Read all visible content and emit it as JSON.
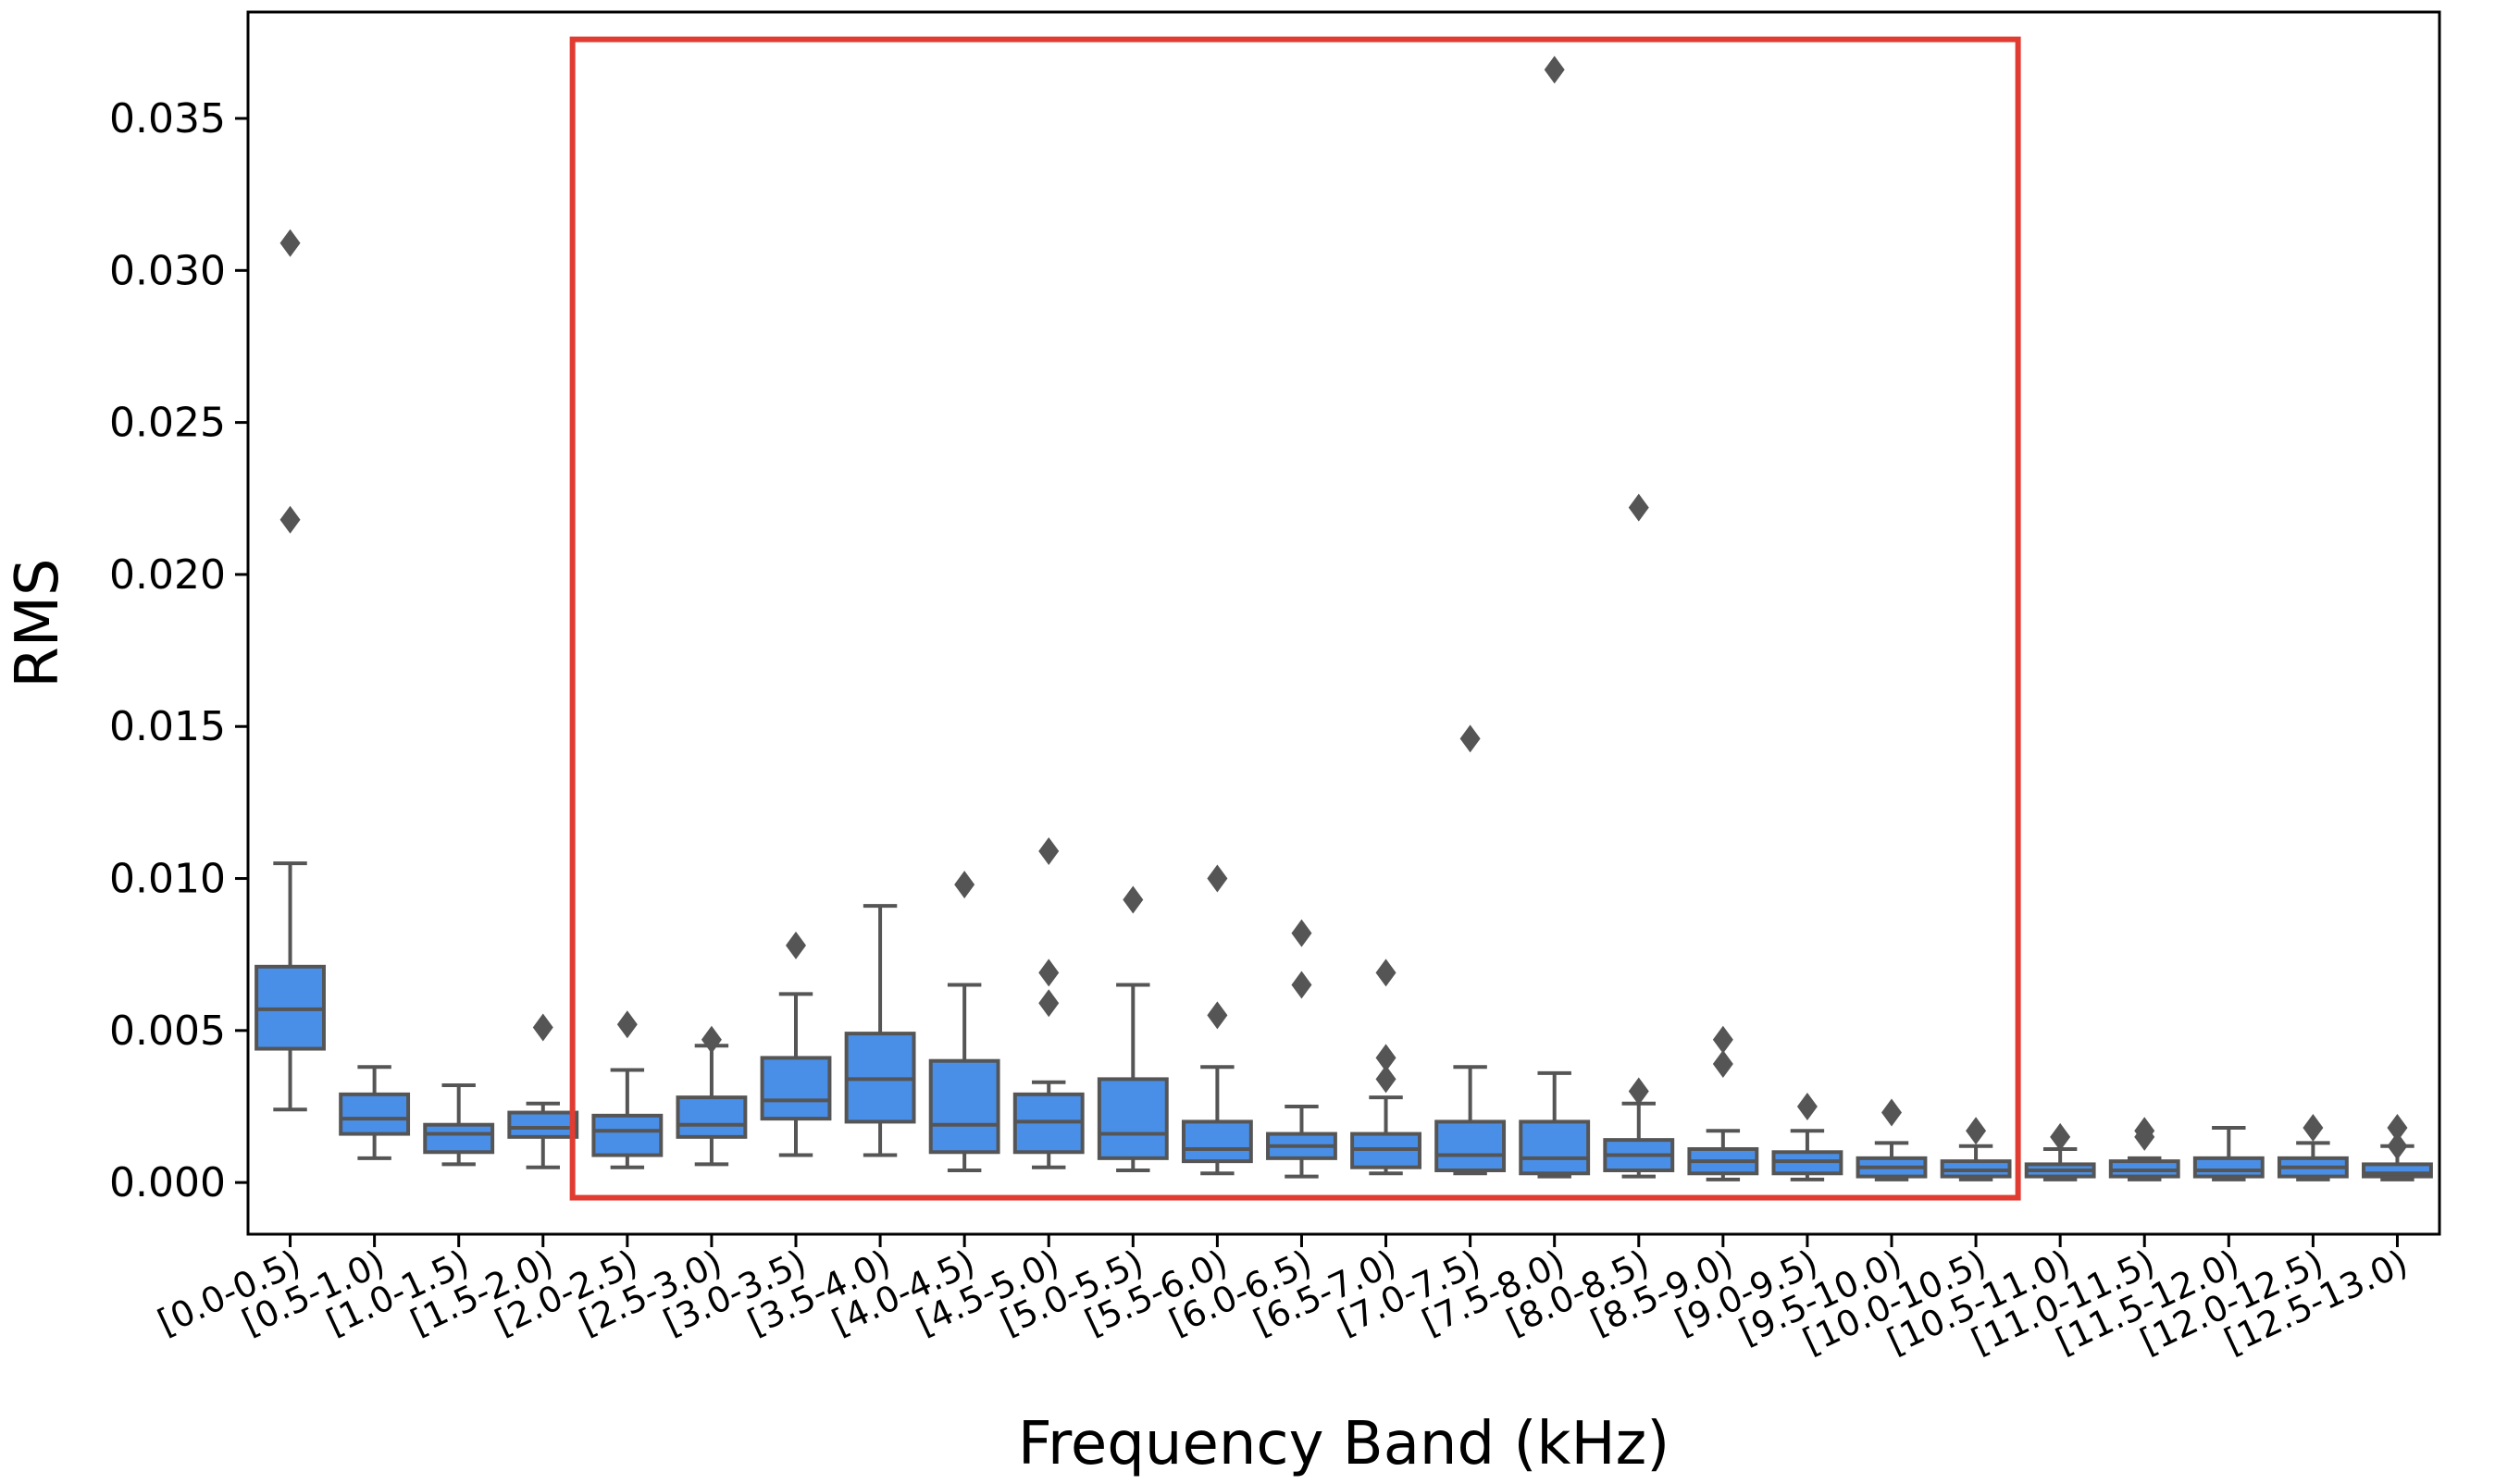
{
  "chart_data": {
    "type": "boxplot",
    "title": "",
    "xlabel": "Frequency Band (kHz)",
    "ylabel": "RMS",
    "ylim": [
      -0.0017,
      0.0385
    ],
    "yticks": [
      {
        "value": 0.0,
        "label": "0.000"
      },
      {
        "value": 0.005,
        "label": "0.005"
      },
      {
        "value": 0.01,
        "label": "0.010"
      },
      {
        "value": 0.015,
        "label": "0.015"
      },
      {
        "value": 0.02,
        "label": "0.020"
      },
      {
        "value": 0.025,
        "label": "0.025"
      },
      {
        "value": 0.03,
        "label": "0.030"
      },
      {
        "value": 0.035,
        "label": "0.035"
      }
    ],
    "grid": false,
    "box_color": "#4a8fe7",
    "edge_color": "#555555",
    "highlight": {
      "color": "#e03c31",
      "from_category": "[2.0-2.5)",
      "to_category": "[10.0-10.5)",
      "y_from": -0.0005,
      "y_to": 0.0376
    },
    "categories": [
      "[0.0-0.5)",
      "[0.5-1.0)",
      "[1.0-1.5)",
      "[1.5-2.0)",
      "[2.0-2.5)",
      "[2.5-3.0)",
      "[3.0-3.5)",
      "[3.5-4.0)",
      "[4.0-4.5)",
      "[4.5-5.0)",
      "[5.0-5.5)",
      "[5.5-6.0)",
      "[6.0-6.5)",
      "[6.5-7.0)",
      "[7.0-7.5)",
      "[7.5-8.0)",
      "[8.0-8.5)",
      "[8.5-9.0)",
      "[9.0-9.5)",
      "[9.5-10.0)",
      "[10.0-10.5)",
      "[10.5-11.0)",
      "[11.0-11.5)",
      "[11.5-12.0)",
      "[12.0-12.5)",
      "[12.5-13.0)"
    ],
    "boxes": [
      {
        "whislo": 0.0024,
        "q1": 0.0044,
        "med": 0.0057,
        "q3": 0.0071,
        "whishi": 0.0105,
        "fliers": [
          0.0309,
          0.0218
        ]
      },
      {
        "whislo": 0.0008,
        "q1": 0.0016,
        "med": 0.0021,
        "q3": 0.0029,
        "whishi": 0.0038,
        "fliers": []
      },
      {
        "whislo": 0.0006,
        "q1": 0.001,
        "med": 0.0016,
        "q3": 0.0019,
        "whishi": 0.0032,
        "fliers": []
      },
      {
        "whislo": 0.0005,
        "q1": 0.0015,
        "med": 0.0018,
        "q3": 0.0023,
        "whishi": 0.0026,
        "fliers": [
          0.0051
        ]
      },
      {
        "whislo": 0.0005,
        "q1": 0.0009,
        "med": 0.0017,
        "q3": 0.0022,
        "whishi": 0.0037,
        "fliers": [
          0.0052
        ]
      },
      {
        "whislo": 0.0006,
        "q1": 0.0015,
        "med": 0.0019,
        "q3": 0.0028,
        "whishi": 0.0045,
        "fliers": [
          0.0047
        ]
      },
      {
        "whislo": 0.0009,
        "q1": 0.0021,
        "med": 0.0027,
        "q3": 0.0041,
        "whishi": 0.0062,
        "fliers": [
          0.0078
        ]
      },
      {
        "whislo": 0.0009,
        "q1": 0.002,
        "med": 0.0034,
        "q3": 0.0049,
        "whishi": 0.0091,
        "fliers": []
      },
      {
        "whislo": 0.0004,
        "q1": 0.001,
        "med": 0.0019,
        "q3": 0.004,
        "whishi": 0.0065,
        "fliers": [
          0.0098
        ]
      },
      {
        "whislo": 0.0005,
        "q1": 0.001,
        "med": 0.002,
        "q3": 0.0029,
        "whishi": 0.0033,
        "fliers": [
          0.0109,
          0.0069,
          0.0059
        ]
      },
      {
        "whislo": 0.0004,
        "q1": 0.0008,
        "med": 0.0016,
        "q3": 0.0034,
        "whishi": 0.0065,
        "fliers": [
          0.0093
        ]
      },
      {
        "whislo": 0.0003,
        "q1": 0.0007,
        "med": 0.0011,
        "q3": 0.002,
        "whishi": 0.0038,
        "fliers": [
          0.01,
          0.0055
        ]
      },
      {
        "whislo": 0.0002,
        "q1": 0.0008,
        "med": 0.0012,
        "q3": 0.0016,
        "whishi": 0.0025,
        "fliers": [
          0.0082,
          0.0065
        ]
      },
      {
        "whislo": 0.0003,
        "q1": 0.0005,
        "med": 0.0011,
        "q3": 0.0016,
        "whishi": 0.0028,
        "fliers": [
          0.0069,
          0.0041,
          0.0034
        ]
      },
      {
        "whislo": 0.0003,
        "q1": 0.0004,
        "med": 0.0009,
        "q3": 0.002,
        "whishi": 0.0038,
        "fliers": [
          0.0146
        ]
      },
      {
        "whislo": 0.0002,
        "q1": 0.0003,
        "med": 0.0008,
        "q3": 0.002,
        "whishi": 0.0036,
        "fliers": [
          0.0366
        ]
      },
      {
        "whislo": 0.0002,
        "q1": 0.0004,
        "med": 0.0009,
        "q3": 0.0014,
        "whishi": 0.0026,
        "fliers": [
          0.0222,
          0.003
        ]
      },
      {
        "whislo": 0.0001,
        "q1": 0.0003,
        "med": 0.0007,
        "q3": 0.0011,
        "whishi": 0.0017,
        "fliers": [
          0.0047,
          0.0039
        ]
      },
      {
        "whislo": 0.0001,
        "q1": 0.0003,
        "med": 0.0007,
        "q3": 0.001,
        "whishi": 0.0017,
        "fliers": [
          0.0025
        ]
      },
      {
        "whislo": 0.0001,
        "q1": 0.0002,
        "med": 0.0005,
        "q3": 0.0008,
        "whishi": 0.0013,
        "fliers": [
          0.0023
        ]
      },
      {
        "whislo": 0.0001,
        "q1": 0.0002,
        "med": 0.0004,
        "q3": 0.0007,
        "whishi": 0.0012,
        "fliers": [
          0.0017
        ]
      },
      {
        "whislo": 0.0001,
        "q1": 0.0002,
        "med": 0.0004,
        "q3": 0.0006,
        "whishi": 0.0011,
        "fliers": [
          0.0015
        ]
      },
      {
        "whislo": 0.0001,
        "q1": 0.0002,
        "med": 0.0004,
        "q3": 0.0007,
        "whishi": 0.0008,
        "fliers": [
          0.0017,
          0.0015
        ]
      },
      {
        "whislo": 0.0001,
        "q1": 0.0002,
        "med": 0.0004,
        "q3": 0.0008,
        "whishi": 0.0018,
        "fliers": []
      },
      {
        "whislo": 0.0001,
        "q1": 0.0002,
        "med": 0.0005,
        "q3": 0.0008,
        "whishi": 0.0013,
        "fliers": [
          0.0018
        ]
      },
      {
        "whislo": 0.0001,
        "q1": 0.0002,
        "med": 0.0003,
        "q3": 0.0006,
        "whishi": 0.0012,
        "fliers": [
          0.0018,
          0.0012
        ]
      }
    ]
  }
}
